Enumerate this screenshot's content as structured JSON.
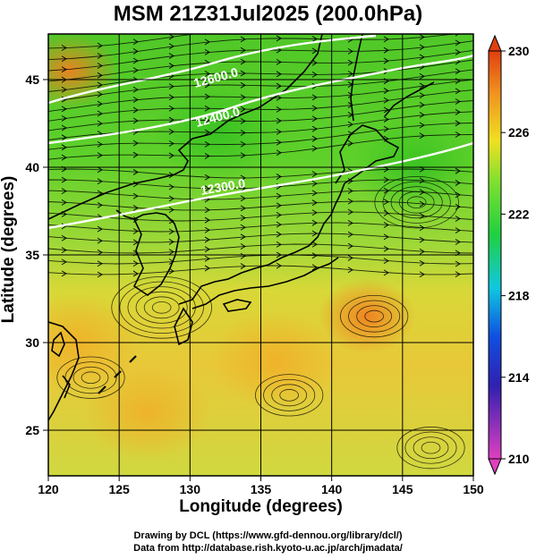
{
  "title": "MSM 21Z31Jul2025 (200.0hPa)",
  "xlabel": "Longitude (degrees)",
  "ylabel": "Latitude  (degrees)",
  "credit_line1": "Drawing by DCL (https://www.gfd-dennou.org/library/dcl/)",
  "credit_line2": "Data from http://database.rish.kyoto-u.ac.jp/arch/jmadata/",
  "chart_data": {
    "type": "heatmap",
    "title": "MSM 21Z31Jul2025 (200.0hPa)",
    "xlabel": "Longitude (degrees)",
    "ylabel": "Latitude  (degrees)",
    "xlim": [
      120,
      150
    ],
    "ylim": [
      22.4,
      47.6
    ],
    "x_ticks": [
      120,
      125,
      130,
      135,
      140,
      145,
      150
    ],
    "y_ticks": [
      25,
      30,
      35,
      40,
      45
    ],
    "grid": true,
    "colorbar": {
      "min": 210,
      "max": 230,
      "ticks": [
        210,
        214,
        218,
        222,
        226,
        230
      ],
      "extend": "both",
      "colors": [
        "#e040c0",
        "#1030c0",
        "#10c0e0",
        "#20d040",
        "#f0e020",
        "#e04010"
      ]
    },
    "temperature_features": [
      {
        "lon": 121.5,
        "lat": 45.5,
        "value": 228
      },
      {
        "lon": 142.5,
        "lat": 31.5,
        "value": 228
      },
      {
        "lon": 127.0,
        "lat": 26.0,
        "value": 226
      },
      {
        "lon": 136.0,
        "lat": 29.0,
        "value": 226
      },
      {
        "lon": 122.0,
        "lat": 30.0,
        "value": 226
      },
      {
        "lon": 132.0,
        "lat": 42.0,
        "value": 223
      },
      {
        "lon": 146.0,
        "lat": 40.0,
        "value": 223
      }
    ],
    "contour_labels": [
      "12600.0",
      "12400.0",
      "12300.0"
    ]
  }
}
